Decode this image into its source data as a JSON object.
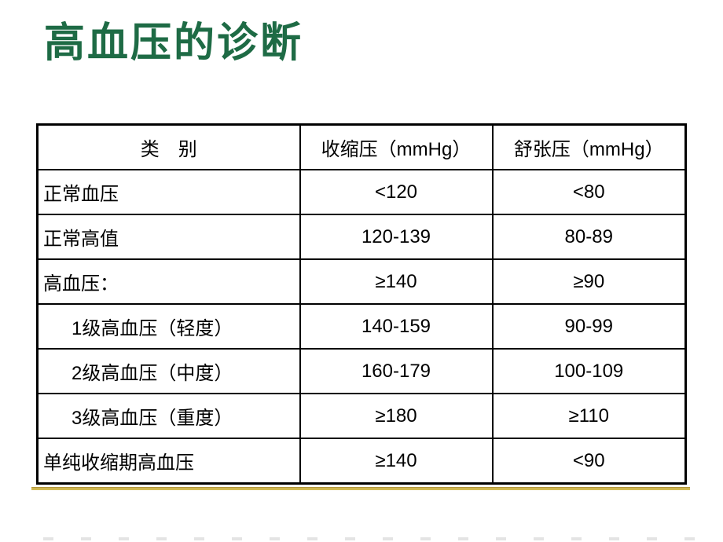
{
  "slide": {
    "title": "高血压的诊断",
    "title_color": "#1e6b45",
    "accent_line_color": "#cdb54a"
  },
  "table": {
    "columns": [
      "类　别",
      "收缩压（mmHg）",
      "舒张压（mmHg）"
    ],
    "rows": [
      {
        "category": "正常血压",
        "systolic": "<120",
        "diastolic": "<80"
      },
      {
        "category": "正常高值",
        "systolic": "120-139",
        "diastolic": "80-89"
      },
      {
        "category": "高血压：",
        "systolic": "≥140",
        "diastolic": "≥90"
      },
      {
        "category": "1级高血压（轻度）",
        "systolic": "140-159",
        "diastolic": "90-99"
      },
      {
        "category": "2级高血压（中度）",
        "systolic": "160-179",
        "diastolic": "100-109"
      },
      {
        "category": "3级高血压（重度）",
        "systolic": "≥180",
        "diastolic": "≥110"
      },
      {
        "category": "单纯收缩期高血压",
        "systolic": "≥140",
        "diastolic": "<90"
      }
    ]
  }
}
